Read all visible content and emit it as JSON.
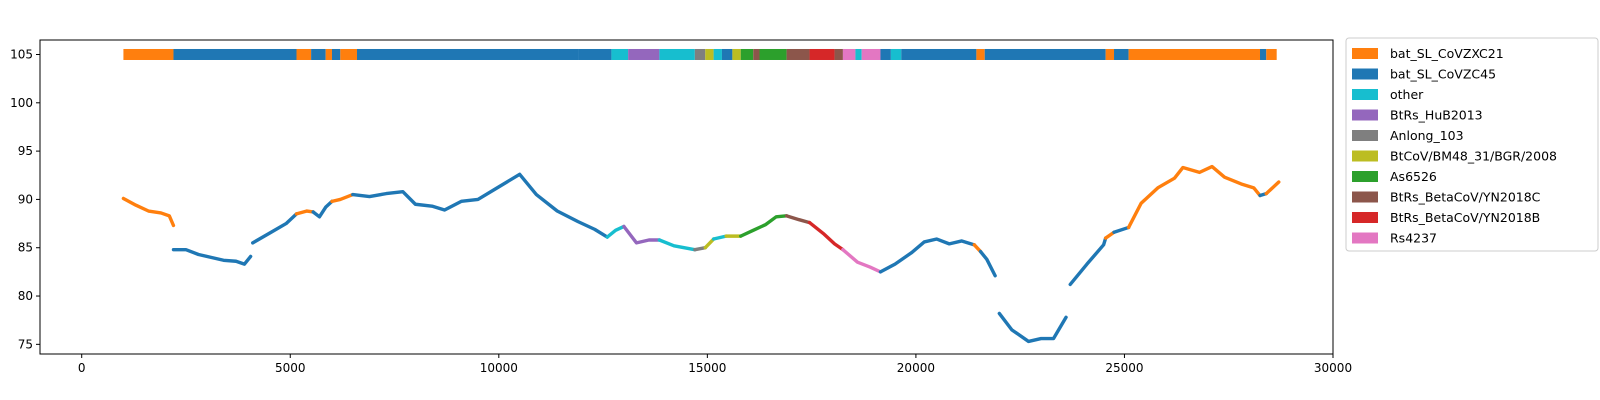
{
  "chart_data": {
    "type": "line",
    "title": "",
    "xlabel": "",
    "ylabel": "",
    "xlim": [
      -1000,
      30000
    ],
    "ylim": [
      74,
      106.5
    ],
    "x_ticks": [
      0,
      5000,
      10000,
      15000,
      20000,
      25000,
      30000
    ],
    "y_ticks": [
      75,
      80,
      85,
      90,
      95,
      100,
      105
    ],
    "grid": false,
    "legend_position": "outside-right",
    "colors": {
      "bat_SL_CoVZXC21": "#ff7f0e",
      "bat_SL_CoVZC45": "#1f77b4",
      "other": "#17becf",
      "BtRs_HuB2013": "#9467bd",
      "Anlong_103": "#7f7f7f",
      "BtCoV/BM48_31/BGR/2008": "#bcbd22",
      "As6526": "#2ca02c",
      "BtRs_BetaCoV/YN2018C": "#8c564b",
      "BtRs_BetaCoV/YN2018B": "#d62728",
      "Rs4237": "#e377c2"
    },
    "legend": [
      "bat_SL_CoVZXC21",
      "bat_SL_CoVZC45",
      "other",
      "BtRs_HuB2013",
      "Anlong_103",
      "BtCoV/BM48_31/BGR/2008",
      "As6526",
      "BtRs_BetaCoV/YN2018C",
      "BtRs_BetaCoV/YN2018B",
      "Rs4237"
    ],
    "segment_band": {
      "y": 105,
      "segments": [
        {
          "start": 1000,
          "end": 2200,
          "series": "bat_SL_CoVZXC21"
        },
        {
          "start": 2200,
          "end": 5150,
          "series": "bat_SL_CoVZC45"
        },
        {
          "start": 5150,
          "end": 5500,
          "series": "bat_SL_CoVZXC21"
        },
        {
          "start": 5500,
          "end": 5850,
          "series": "bat_SL_CoVZC45"
        },
        {
          "start": 5850,
          "end": 6000,
          "series": "bat_SL_CoVZXC21"
        },
        {
          "start": 6000,
          "end": 6200,
          "series": "bat_SL_CoVZC45"
        },
        {
          "start": 6200,
          "end": 6600,
          "series": "bat_SL_CoVZXC21"
        },
        {
          "start": 6600,
          "end": 11900,
          "series": "bat_SL_CoVZC45"
        },
        {
          "start": 11900,
          "end": 12700,
          "series": "bat_SL_CoVZC45"
        },
        {
          "start": 12700,
          "end": 13100,
          "series": "other"
        },
        {
          "start": 13100,
          "end": 13850,
          "series": "BtRs_HuB2013"
        },
        {
          "start": 13850,
          "end": 14700,
          "series": "other"
        },
        {
          "start": 14700,
          "end": 14950,
          "series": "Anlong_103"
        },
        {
          "start": 14950,
          "end": 15150,
          "series": "BtCoV/BM48_31/BGR/2008"
        },
        {
          "start": 15150,
          "end": 15350,
          "series": "other"
        },
        {
          "start": 15350,
          "end": 15600,
          "series": "bat_SL_CoVZC45"
        },
        {
          "start": 15600,
          "end": 15800,
          "series": "BtCoV/BM48_31/BGR/2008"
        },
        {
          "start": 15800,
          "end": 16100,
          "series": "As6526"
        },
        {
          "start": 16100,
          "end": 16250,
          "series": "BtRs_BetaCoV/YN2018C"
        },
        {
          "start": 16250,
          "end": 16900,
          "series": "As6526"
        },
        {
          "start": 16900,
          "end": 17450,
          "series": "BtRs_BetaCoV/YN2018C"
        },
        {
          "start": 17450,
          "end": 18050,
          "series": "BtRs_BetaCoV/YN2018B"
        },
        {
          "start": 18050,
          "end": 18250,
          "series": "BtRs_BetaCoV/YN2018C"
        },
        {
          "start": 18250,
          "end": 18550,
          "series": "Rs4237"
        },
        {
          "start": 18550,
          "end": 18700,
          "series": "other"
        },
        {
          "start": 18700,
          "end": 19150,
          "series": "Rs4237"
        },
        {
          "start": 19150,
          "end": 19400,
          "series": "bat_SL_CoVZC45"
        },
        {
          "start": 19400,
          "end": 19650,
          "series": "other"
        },
        {
          "start": 19650,
          "end": 21450,
          "series": "bat_SL_CoVZC45"
        },
        {
          "start": 21450,
          "end": 21650,
          "series": "bat_SL_CoVZXC21"
        },
        {
          "start": 21650,
          "end": 24550,
          "series": "bat_SL_CoVZC45"
        },
        {
          "start": 24550,
          "end": 24750,
          "series": "bat_SL_CoVZXC21"
        },
        {
          "start": 24750,
          "end": 25100,
          "series": "bat_SL_CoVZC45"
        },
        {
          "start": 25100,
          "end": 28250,
          "series": "bat_SL_CoVZXC21"
        },
        {
          "start": 28250,
          "end": 28400,
          "series": "bat_SL_CoVZC45"
        },
        {
          "start": 28400,
          "end": 28650,
          "series": "bat_SL_CoVZXC21"
        }
      ]
    },
    "similarity_series": [
      {
        "series": "bat_SL_CoVZXC21",
        "points": [
          [
            1000,
            90.1
          ],
          [
            1300,
            89.4
          ],
          [
            1600,
            88.8
          ],
          [
            1900,
            88.6
          ],
          [
            2100,
            88.3
          ],
          [
            2200,
            87.3
          ]
        ]
      },
      {
        "series": "bat_SL_CoVZC45",
        "points": [
          [
            2200,
            84.8
          ],
          [
            2500,
            84.8
          ],
          [
            2800,
            84.3
          ],
          [
            3100,
            84.0
          ],
          [
            3400,
            83.7
          ],
          [
            3700,
            83.6
          ],
          [
            3900,
            83.3
          ],
          [
            4050,
            84.1
          ]
        ]
      },
      {
        "series": "bat_SL_CoVZC45",
        "points": [
          [
            4100,
            85.5
          ],
          [
            4500,
            86.5
          ],
          [
            4900,
            87.5
          ],
          [
            5150,
            88.5
          ]
        ]
      },
      {
        "series": "bat_SL_CoVZXC21",
        "points": [
          [
            5150,
            88.5
          ],
          [
            5400,
            88.8
          ],
          [
            5550,
            88.7
          ]
        ]
      },
      {
        "series": "bat_SL_CoVZC45",
        "points": [
          [
            5550,
            88.7
          ],
          [
            5700,
            88.2
          ],
          [
            5850,
            89.2
          ],
          [
            6000,
            89.8
          ]
        ]
      },
      {
        "series": "bat_SL_CoVZXC21",
        "points": [
          [
            6000,
            89.8
          ],
          [
            6200,
            90.0
          ],
          [
            6500,
            90.5
          ]
        ]
      },
      {
        "series": "bat_SL_CoVZC45",
        "points": [
          [
            6500,
            90.5
          ],
          [
            6900,
            90.3
          ],
          [
            7300,
            90.6
          ],
          [
            7700,
            90.8
          ],
          [
            8000,
            89.5
          ],
          [
            8400,
            89.3
          ],
          [
            8700,
            88.9
          ],
          [
            9100,
            89.8
          ],
          [
            9500,
            90.0
          ],
          [
            10000,
            91.3
          ],
          [
            10500,
            92.6
          ],
          [
            10900,
            90.5
          ],
          [
            11400,
            88.8
          ],
          [
            11900,
            87.7
          ],
          [
            12300,
            86.9
          ],
          [
            12600,
            86.1
          ]
        ]
      },
      {
        "series": "other",
        "points": [
          [
            12600,
            86.1
          ],
          [
            12800,
            86.8
          ],
          [
            13000,
            87.2
          ]
        ]
      },
      {
        "series": "BtRs_HuB2013",
        "points": [
          [
            13000,
            87.2
          ],
          [
            13300,
            85.5
          ],
          [
            13600,
            85.8
          ],
          [
            13850,
            85.8
          ]
        ]
      },
      {
        "series": "other",
        "points": [
          [
            13850,
            85.8
          ],
          [
            14200,
            85.2
          ],
          [
            14700,
            84.8
          ]
        ]
      },
      {
        "series": "Anlong_103",
        "points": [
          [
            14700,
            84.8
          ],
          [
            14950,
            85.0
          ]
        ]
      },
      {
        "series": "BtCoV/BM48_31/BGR/2008",
        "points": [
          [
            14950,
            85.0
          ],
          [
            15150,
            85.9
          ]
        ]
      },
      {
        "series": "other",
        "points": [
          [
            15150,
            85.9
          ],
          [
            15450,
            86.2
          ]
        ]
      },
      {
        "series": "BtCoV/BM48_31/BGR/2008",
        "points": [
          [
            15450,
            86.2
          ],
          [
            15800,
            86.2
          ]
        ]
      },
      {
        "series": "As6526",
        "points": [
          [
            15800,
            86.2
          ],
          [
            16100,
            86.8
          ],
          [
            16400,
            87.4
          ],
          [
            16650,
            88.2
          ],
          [
            16900,
            88.3
          ]
        ]
      },
      {
        "series": "BtRs_BetaCoV/YN2018C",
        "points": [
          [
            16900,
            88.3
          ],
          [
            17200,
            87.9
          ],
          [
            17450,
            87.6
          ]
        ]
      },
      {
        "series": "BtRs_BetaCoV/YN2018B",
        "points": [
          [
            17450,
            87.6
          ],
          [
            17800,
            86.4
          ],
          [
            18050,
            85.4
          ],
          [
            18250,
            84.8
          ]
        ]
      },
      {
        "series": "Rs4237",
        "points": [
          [
            18250,
            84.8
          ],
          [
            18600,
            83.5
          ],
          [
            18900,
            83.0
          ],
          [
            19150,
            82.5
          ]
        ]
      },
      {
        "series": "bat_SL_CoVZC45",
        "points": [
          [
            19150,
            82.5
          ],
          [
            19500,
            83.3
          ],
          [
            19900,
            84.5
          ],
          [
            20200,
            85.6
          ],
          [
            20500,
            85.9
          ],
          [
            20800,
            85.4
          ],
          [
            21100,
            85.7
          ],
          [
            21400,
            85.3
          ]
        ]
      },
      {
        "series": "bat_SL_CoVZXC21",
        "points": [
          [
            21400,
            85.3
          ],
          [
            21550,
            84.6
          ]
        ]
      },
      {
        "series": "bat_SL_CoVZC45",
        "points": [
          [
            21550,
            84.6
          ],
          [
            21700,
            83.8
          ],
          [
            21900,
            82.1
          ]
        ]
      },
      {
        "series": "bat_SL_CoVZC45",
        "points": [
          [
            22000,
            78.2
          ],
          [
            22300,
            76.5
          ],
          [
            22700,
            75.3
          ],
          [
            23000,
            75.6
          ],
          [
            23300,
            75.6
          ],
          [
            23600,
            77.8
          ]
        ]
      },
      {
        "series": "bat_SL_CoVZC45",
        "points": [
          [
            23700,
            81.2
          ],
          [
            24100,
            83.3
          ],
          [
            24500,
            85.3
          ],
          [
            24550,
            86.0
          ]
        ]
      },
      {
        "series": "bat_SL_CoVZXC21",
        "points": [
          [
            24550,
            86.0
          ],
          [
            24750,
            86.6
          ]
        ]
      },
      {
        "series": "bat_SL_CoVZC45",
        "points": [
          [
            24750,
            86.6
          ],
          [
            25100,
            87.1
          ]
        ]
      },
      {
        "series": "bat_SL_CoVZXC21",
        "points": [
          [
            25100,
            87.1
          ],
          [
            25400,
            89.6
          ],
          [
            25800,
            91.2
          ],
          [
            26200,
            92.2
          ],
          [
            26400,
            93.3
          ],
          [
            26800,
            92.8
          ],
          [
            27100,
            93.4
          ],
          [
            27400,
            92.3
          ],
          [
            27800,
            91.6
          ],
          [
            28100,
            91.2
          ],
          [
            28250,
            90.4
          ]
        ]
      },
      {
        "series": "bat_SL_CoVZC45",
        "points": [
          [
            28250,
            90.4
          ],
          [
            28400,
            90.6
          ]
        ]
      },
      {
        "series": "bat_SL_CoVZXC21",
        "points": [
          [
            28400,
            90.6
          ],
          [
            28700,
            91.8
          ]
        ]
      }
    ]
  }
}
